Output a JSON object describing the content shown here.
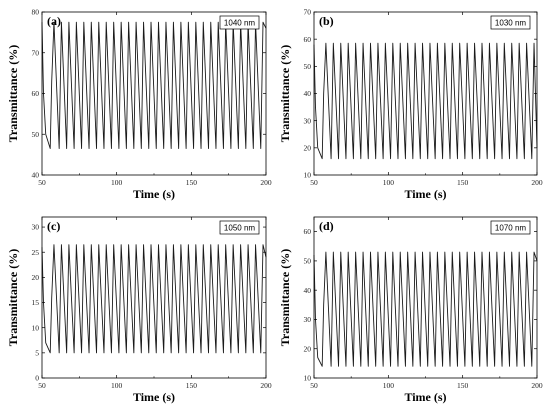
{
  "chart_data": [
    {
      "type": "line",
      "panel_label": "(a)",
      "legend": "1040 nm",
      "xlabel": "Time (s)",
      "ylabel": "Transmittance (%)",
      "xlim": [
        50,
        200
      ],
      "ylim": [
        40,
        80
      ],
      "xticks": [
        50,
        100,
        150,
        200
      ],
      "yticks": [
        40,
        50,
        60,
        70,
        80
      ],
      "series": [
        {
          "period_s": 10.1,
          "min": 46.5,
          "max": 77.5,
          "x": [
            50,
            51,
            52.5,
            55.5,
            56.5,
            58,
            61.5,
            63,
            66.5,
            68,
            71.5,
            73,
            76.5,
            78,
            81.5,
            83,
            86.5,
            88,
            91.5,
            93,
            96.5,
            98,
            101.5,
            103,
            106.5,
            108,
            111.5,
            113,
            116.5,
            118,
            121.5,
            123,
            126.5,
            128,
            131.5,
            133,
            136.5,
            138,
            141.5,
            143,
            146.5,
            148,
            151.5,
            153,
            156.5,
            158,
            161.5,
            163,
            166.5,
            168,
            171.5,
            173,
            176.5,
            178,
            181.5,
            183,
            186.5,
            188,
            191.5,
            193,
            196.5,
            198,
            200
          ],
          "y": [
            77.5,
            60,
            50,
            46.5,
            63,
            77.5,
            46.5,
            77.5,
            46.5,
            77.5,
            46.5,
            77.5,
            46.5,
            77.5,
            46.5,
            77.5,
            46.5,
            77.5,
            46.5,
            77.5,
            46.5,
            77.5,
            46.5,
            77.5,
            46.5,
            77.5,
            46.5,
            77.5,
            46.5,
            77.5,
            46.5,
            77.5,
            46.5,
            77.5,
            46.5,
            77.5,
            46.5,
            77.5,
            46.5,
            77.5,
            46.5,
            77.5,
            46.5,
            77.5,
            46.5,
            77.5,
            46.5,
            77.5,
            46.5,
            77.5,
            46.5,
            77.5,
            46.5,
            77.5,
            46.5,
            77.5,
            46.5,
            77.5,
            46.5,
            77.5,
            46.5,
            77.5,
            76
          ]
        }
      ]
    },
    {
      "type": "line",
      "panel_label": "(b)",
      "legend": "1030 nm",
      "xlabel": "Time (s)",
      "ylabel": "Transmittance (%)",
      "xlim": [
        50,
        200
      ],
      "ylim": [
        10,
        70
      ],
      "xticks": [
        50,
        100,
        150,
        200
      ],
      "yticks": [
        10,
        20,
        30,
        40,
        50,
        60,
        70
      ],
      "series": [
        {
          "period_s": 10.1,
          "min": 16,
          "max": 58.5,
          "x": [
            50,
            51,
            52.5,
            55.5,
            56.5,
            58,
            61.5,
            63,
            66.5,
            68,
            71.5,
            73,
            76.5,
            78,
            81.5,
            83,
            86.5,
            88,
            91.5,
            93,
            96.5,
            98,
            101.5,
            103,
            106.5,
            108,
            111.5,
            113,
            116.5,
            118,
            121.5,
            123,
            126.5,
            128,
            131.5,
            133,
            136.5,
            138,
            141.5,
            143,
            146.5,
            148,
            151.5,
            153,
            156.5,
            158,
            161.5,
            163,
            166.5,
            168,
            171.5,
            173,
            176.5,
            178,
            181.5,
            183,
            186.5,
            188,
            191.5,
            193,
            196.5,
            198,
            200
          ],
          "y": [
            58,
            35,
            20,
            16,
            40,
            58.5,
            16,
            58.5,
            16,
            58.5,
            16,
            58.5,
            16,
            58.5,
            16,
            58.5,
            16,
            58.5,
            16,
            58.5,
            16,
            58.5,
            16,
            58.5,
            16,
            58.5,
            16,
            58.5,
            16,
            58.5,
            16,
            58.5,
            16,
            58.5,
            16,
            58.5,
            16,
            58.5,
            16,
            58.5,
            16,
            58.5,
            16,
            58.5,
            16,
            58.5,
            16,
            58.5,
            16,
            58.5,
            16,
            58.5,
            16,
            58.5,
            16,
            58.5,
            16,
            58.5,
            16,
            58.5,
            16,
            58.5,
            20
          ]
        }
      ]
    },
    {
      "type": "line",
      "panel_label": "(c)",
      "legend": "1050 nm",
      "xlabel": "Time (s)",
      "ylabel": "Transmittance (%)",
      "xlim": [
        50,
        200
      ],
      "ylim": [
        0,
        32
      ],
      "xticks": [
        50,
        100,
        150,
        200
      ],
      "yticks": [
        0,
        5,
        10,
        15,
        20,
        25,
        30
      ],
      "series": [
        {
          "period_s": 10.1,
          "min": 5,
          "max": 26.5,
          "x": [
            50,
            51,
            52.5,
            55.5,
            56.5,
            58,
            61.5,
            63,
            66.5,
            68,
            71.5,
            73,
            76.5,
            78,
            81.5,
            83,
            86.5,
            88,
            91.5,
            93,
            96.5,
            98,
            101.5,
            103,
            106.5,
            108,
            111.5,
            113,
            116.5,
            118,
            121.5,
            123,
            126.5,
            128,
            131.5,
            133,
            136.5,
            138,
            141.5,
            143,
            146.5,
            148,
            151.5,
            153,
            156.5,
            158,
            161.5,
            163,
            166.5,
            168,
            171.5,
            173,
            176.5,
            178,
            181.5,
            183,
            186.5,
            188,
            191.5,
            193,
            196.5,
            198,
            200
          ],
          "y": [
            26,
            15,
            7,
            5,
            16,
            26.5,
            5,
            26.5,
            5,
            26.5,
            5,
            26.5,
            5,
            26.5,
            5,
            26.5,
            5,
            26.5,
            5,
            26.5,
            5,
            26.5,
            5,
            26.5,
            5,
            26.5,
            5,
            26.5,
            5,
            26.5,
            5,
            26.5,
            5,
            26.5,
            5,
            26.5,
            5,
            26.5,
            5,
            26.5,
            5,
            26.5,
            5,
            26.5,
            5,
            26.5,
            5,
            26.5,
            5,
            26.5,
            5,
            26.5,
            5,
            26.5,
            5,
            26.5,
            5,
            26.5,
            5,
            26.5,
            5,
            26.5,
            24
          ]
        }
      ]
    },
    {
      "type": "line",
      "panel_label": "(d)",
      "legend": "1070 nm",
      "xlabel": "Time (s)",
      "ylabel": "Transmittance (%)",
      "xlim": [
        50,
        200
      ],
      "ylim": [
        10,
        65
      ],
      "xticks": [
        50,
        100,
        150,
        200
      ],
      "yticks": [
        10,
        20,
        30,
        40,
        50,
        60
      ],
      "series": [
        {
          "period_s": 10.1,
          "min": 14,
          "max": 53,
          "x": [
            50,
            51,
            52.5,
            55.5,
            56.5,
            58,
            61.5,
            63,
            66.5,
            68,
            71.5,
            73,
            76.5,
            78,
            81.5,
            83,
            86.5,
            88,
            91.5,
            93,
            96.5,
            98,
            101.5,
            103,
            106.5,
            108,
            111.5,
            113,
            116.5,
            118,
            121.5,
            123,
            126.5,
            128,
            131.5,
            133,
            136.5,
            138,
            141.5,
            143,
            146.5,
            148,
            151.5,
            153,
            156.5,
            158,
            161.5,
            163,
            166.5,
            168,
            171.5,
            173,
            176.5,
            178,
            181.5,
            183,
            186.5,
            188,
            191.5,
            193,
            196.5,
            198,
            200
          ],
          "y": [
            52,
            30,
            17,
            14,
            35,
            53,
            14,
            53,
            14,
            53,
            14,
            53,
            14,
            53,
            14,
            53,
            14,
            53,
            14,
            53,
            14,
            53,
            14,
            53,
            14,
            53,
            14,
            53,
            14,
            53,
            14,
            53,
            14,
            53,
            14,
            53,
            14,
            53,
            14,
            53,
            14,
            53,
            14,
            53,
            14,
            53,
            14,
            53,
            14,
            53,
            14,
            53,
            14,
            53,
            14,
            53,
            14,
            53,
            14,
            53,
            14,
            53,
            50
          ]
        }
      ]
    }
  ]
}
